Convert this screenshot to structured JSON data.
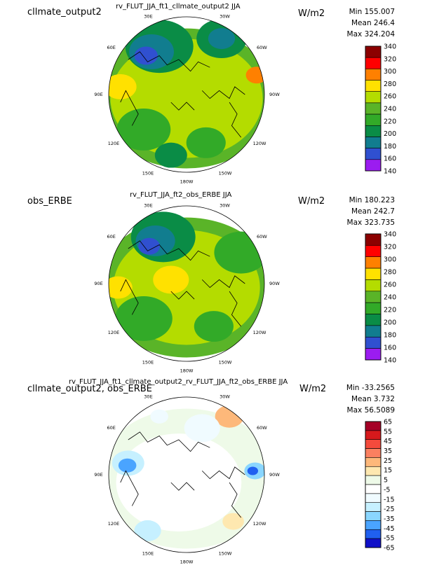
{
  "chart_data": [
    {
      "type": "heatmap",
      "projection": "polar-stereographic-north",
      "left_label": "cllmate_output2",
      "title": "rv_FLUT_JJA_ft1_cllmate_output2  JJA",
      "units": "W/m2",
      "stats": {
        "min": "Min 155.007",
        "mean": "Mean 246.4",
        "max": "Max 324.204"
      },
      "lon_labels": [
        "30E",
        "30W",
        "60E",
        "60W",
        "90E",
        "90W",
        "120E",
        "120W",
        "150E",
        "150W",
        "180W"
      ],
      "colorbar": {
        "levels": [
          "340",
          "320",
          "300",
          "280",
          "260",
          "240",
          "220",
          "200",
          "180",
          "160",
          "140"
        ],
        "colors": [
          "#8b0000",
          "#ff0000",
          "#ff8000",
          "#ffe100",
          "#b4dc00",
          "#5ab428",
          "#32aa28",
          "#0a8c46",
          "#117d8f",
          "#3050d0",
          "#9b1cf0"
        ]
      },
      "field": [
        {
          "cx": 0.0,
          "cy": 0.05,
          "r": 1.0,
          "level": 5
        },
        {
          "cx": 0.0,
          "cy": 0.05,
          "r": 0.85,
          "level": 6
        },
        {
          "cx": 0.0,
          "cy": 0.15,
          "r": 0.55,
          "level": 6
        },
        {
          "cx": -0.35,
          "cy": -0.62,
          "r": 0.38,
          "level": 3
        },
        {
          "cx": -0.45,
          "cy": -0.55,
          "r": 0.25,
          "level": 2
        },
        {
          "cx": -0.52,
          "cy": -0.5,
          "r": 0.13,
          "level": 1
        },
        {
          "cx": 0.45,
          "cy": -0.72,
          "r": 0.28,
          "level": 3
        },
        {
          "cx": 0.45,
          "cy": -0.72,
          "r": 0.15,
          "level": 2
        },
        {
          "cx": -0.55,
          "cy": 0.45,
          "r": 0.3,
          "level": 4
        },
        {
          "cx": 0.25,
          "cy": 0.62,
          "r": 0.22,
          "level": 4
        },
        {
          "cx": -0.2,
          "cy": 0.78,
          "r": 0.18,
          "level": 3
        },
        {
          "cx": -0.85,
          "cy": -0.1,
          "r": 0.18,
          "level": 7
        },
        {
          "cx": 0.9,
          "cy": -0.25,
          "r": 0.12,
          "level": 8
        }
      ]
    },
    {
      "type": "heatmap",
      "projection": "polar-stereographic-north",
      "left_label": "obs_ERBE",
      "title": "rv_FLUT_JJA_ft2_obs_ERBE  JJA",
      "units": "W/m2",
      "stats": {
        "min": "Min 180.223",
        "mean": "Mean 242.7",
        "max": "Max 323.735"
      },
      "lon_labels": [
        "30E",
        "30W",
        "60E",
        "60W",
        "90E",
        "90W",
        "120E",
        "120W",
        "150E",
        "150W",
        "180W"
      ],
      "colorbar": {
        "levels": [
          "340",
          "320",
          "300",
          "280",
          "260",
          "240",
          "220",
          "200",
          "180",
          "160",
          "140"
        ],
        "colors": [
          "#8b0000",
          "#ff0000",
          "#ff8000",
          "#ffe100",
          "#b4dc00",
          "#5ab428",
          "#32aa28",
          "#0a8c46",
          "#117d8f",
          "#3050d0",
          "#9b1cf0"
        ]
      },
      "field": [
        {
          "cx": 0.0,
          "cy": 0.05,
          "r": 1.0,
          "level": 5
        },
        {
          "cx": 0.0,
          "cy": 0.05,
          "r": 0.82,
          "level": 6
        },
        {
          "cx": 0.0,
          "cy": 0.12,
          "r": 0.5,
          "level": 6
        },
        {
          "cx": -0.3,
          "cy": -0.6,
          "r": 0.36,
          "level": 3
        },
        {
          "cx": -0.4,
          "cy": -0.55,
          "r": 0.22,
          "level": 2
        },
        {
          "cx": -0.48,
          "cy": -0.48,
          "r": 0.12,
          "level": 1
        },
        {
          "cx": 0.7,
          "cy": -0.4,
          "r": 0.3,
          "level": 4
        },
        {
          "cx": -0.55,
          "cy": 0.45,
          "r": 0.32,
          "level": 4
        },
        {
          "cx": 0.35,
          "cy": 0.55,
          "r": 0.22,
          "level": 4
        },
        {
          "cx": -0.88,
          "cy": 0.05,
          "r": 0.16,
          "level": 7
        },
        {
          "cx": -0.2,
          "cy": -0.05,
          "r": 0.2,
          "level": 7
        }
      ]
    },
    {
      "type": "heatmap",
      "projection": "polar-stereographic-north",
      "left_label": "cllmate_output2, obs_ERBE",
      "title": "rv_FLUT_JJA_ft1_cllmate_output2_rv_FLUT_JJA_ft2_obs_ERBE  JJA",
      "units": "W/m2",
      "stats": {
        "min": "Min -33.2565",
        "mean": "Mean 3.732",
        "max": "Max 56.5089"
      },
      "lon_labels": [
        "30E",
        "30W",
        "60E",
        "60W",
        "90E",
        "90W",
        "120E",
        "120W",
        "150E",
        "150W",
        "180W"
      ],
      "colorbar": {
        "levels": [
          "65",
          "55",
          "45",
          "35",
          "25",
          "15",
          "5",
          "-5",
          "-15",
          "-25",
          "-35",
          "-45",
          "-55",
          "-65"
        ],
        "colors": [
          "#a50026",
          "#d7191c",
          "#f44a3c",
          "#fb8060",
          "#fdb87a",
          "#fee8b0",
          "#eefae8",
          "#ffffff",
          "#f0fbff",
          "#c6f0ff",
          "#8ad6ff",
          "#4aa4ff",
          "#2060f0",
          "#1010c8"
        ]
      },
      "field": [
        {
          "cx": 0.0,
          "cy": 0.05,
          "r": 1.0,
          "level": 7
        },
        {
          "cx": -0.1,
          "cy": 0.1,
          "r": 0.7,
          "level": 6
        },
        {
          "cx": -0.75,
          "cy": -0.15,
          "r": 0.18,
          "level": 4
        },
        {
          "cx": -0.76,
          "cy": -0.12,
          "r": 0.1,
          "level": 2
        },
        {
          "cx": 0.88,
          "cy": -0.05,
          "r": 0.12,
          "level": 3
        },
        {
          "cx": 0.85,
          "cy": -0.05,
          "r": 0.06,
          "level": 1
        },
        {
          "cx": 0.55,
          "cy": -0.75,
          "r": 0.16,
          "level": 9
        },
        {
          "cx": -0.5,
          "cy": 0.72,
          "r": 0.15,
          "level": 4
        },
        {
          "cx": 0.2,
          "cy": -0.6,
          "r": 0.2,
          "level": 5
        },
        {
          "cx": -0.35,
          "cy": -0.75,
          "r": 0.1,
          "level": 5
        },
        {
          "cx": 0.6,
          "cy": 0.6,
          "r": 0.12,
          "level": 8
        }
      ]
    }
  ]
}
